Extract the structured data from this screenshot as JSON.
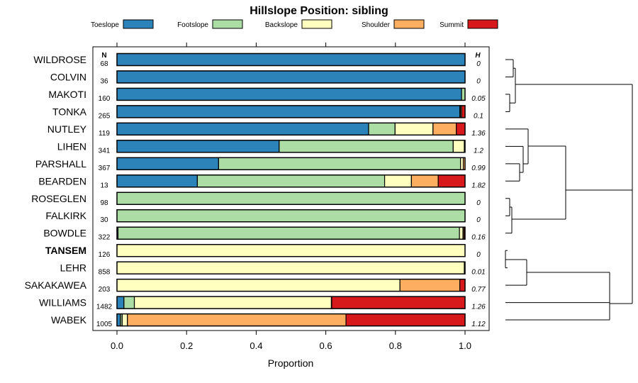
{
  "chart_data": {
    "type": "bar",
    "orientation": "horizontal",
    "stacked": true,
    "title": "Hillslope Position: sibling",
    "xlabel": "Proportion",
    "xlim": [
      0,
      1
    ],
    "x_ticks": [
      "0.0",
      "0.2",
      "0.4",
      "0.6",
      "0.8",
      "1.0"
    ],
    "n_header": "N",
    "h_header": "H",
    "legend_placement": "top",
    "series": [
      {
        "name": "Toeslope",
        "color": "#2b83ba"
      },
      {
        "name": "Footslope",
        "color": "#abdda4"
      },
      {
        "name": "Backslope",
        "color": "#ffffbf"
      },
      {
        "name": "Shoulder",
        "color": "#fdae61"
      },
      {
        "name": "Summit",
        "color": "#d7191c"
      }
    ],
    "categories": [
      {
        "label": "WILDROSE",
        "n": "68",
        "h": "0",
        "bold": false,
        "values": [
          1.0,
          0,
          0,
          0,
          0
        ]
      },
      {
        "label": "COLVIN",
        "n": "36",
        "h": "0",
        "bold": false,
        "values": [
          1.0,
          0,
          0,
          0,
          0
        ]
      },
      {
        "label": "MAKOTI",
        "n": "160",
        "h": "0.05",
        "bold": false,
        "values": [
          0.99,
          0.01,
          0,
          0,
          0
        ]
      },
      {
        "label": "TONKA",
        "n": "265",
        "h": "0.1",
        "bold": false,
        "values": [
          0.985,
          0.002,
          0.003,
          0,
          0.01
        ]
      },
      {
        "label": "NUTLEY",
        "n": "119",
        "h": "1.36",
        "bold": false,
        "values": [
          0.723,
          0.076,
          0.109,
          0.067,
          0.025
        ]
      },
      {
        "label": "LIHEN",
        "n": "341",
        "h": "1.2",
        "bold": false,
        "values": [
          0.466,
          0.5,
          0.032,
          0.002,
          0
        ]
      },
      {
        "label": "PARSHALL",
        "n": "367",
        "h": "0.99",
        "bold": false,
        "values": [
          0.292,
          0.695,
          0.008,
          0.005,
          0
        ]
      },
      {
        "label": "BEARDEN",
        "n": "13",
        "h": "1.82",
        "bold": false,
        "values": [
          0.231,
          0.538,
          0.077,
          0.077,
          0.077
        ]
      },
      {
        "label": "ROSEGLEN",
        "n": "98",
        "h": "0",
        "bold": false,
        "values": [
          0,
          1.0,
          0,
          0,
          0
        ]
      },
      {
        "label": "FALKIRK",
        "n": "30",
        "h": "0",
        "bold": false,
        "values": [
          0,
          1.0,
          0,
          0,
          0
        ]
      },
      {
        "label": "BOWDLE",
        "n": "322",
        "h": "0.16",
        "bold": false,
        "values": [
          0.003,
          0.981,
          0.01,
          0.003,
          0.003
        ]
      },
      {
        "label": "TANSEM",
        "n": "126",
        "h": "0",
        "bold": true,
        "values": [
          0,
          0,
          1.0,
          0,
          0
        ]
      },
      {
        "label": "LEHR",
        "n": "858",
        "h": "0.01",
        "bold": false,
        "values": [
          0,
          0,
          0.998,
          0.002,
          0
        ]
      },
      {
        "label": "SAKAKAWEA",
        "n": "203",
        "h": "0.77",
        "bold": false,
        "values": [
          0,
          0,
          0.813,
          0.172,
          0.015
        ]
      },
      {
        "label": "WILLIAMS",
        "n": "1482",
        "h": "1.26",
        "bold": false,
        "values": [
          0.02,
          0.03,
          0.566,
          0.001,
          0.383
        ]
      },
      {
        "label": "WABEK",
        "n": "1005",
        "h": "1.12",
        "bold": false,
        "values": [
          0.01,
          0.005,
          0.015,
          0.628,
          0.342
        ]
      }
    ]
  }
}
